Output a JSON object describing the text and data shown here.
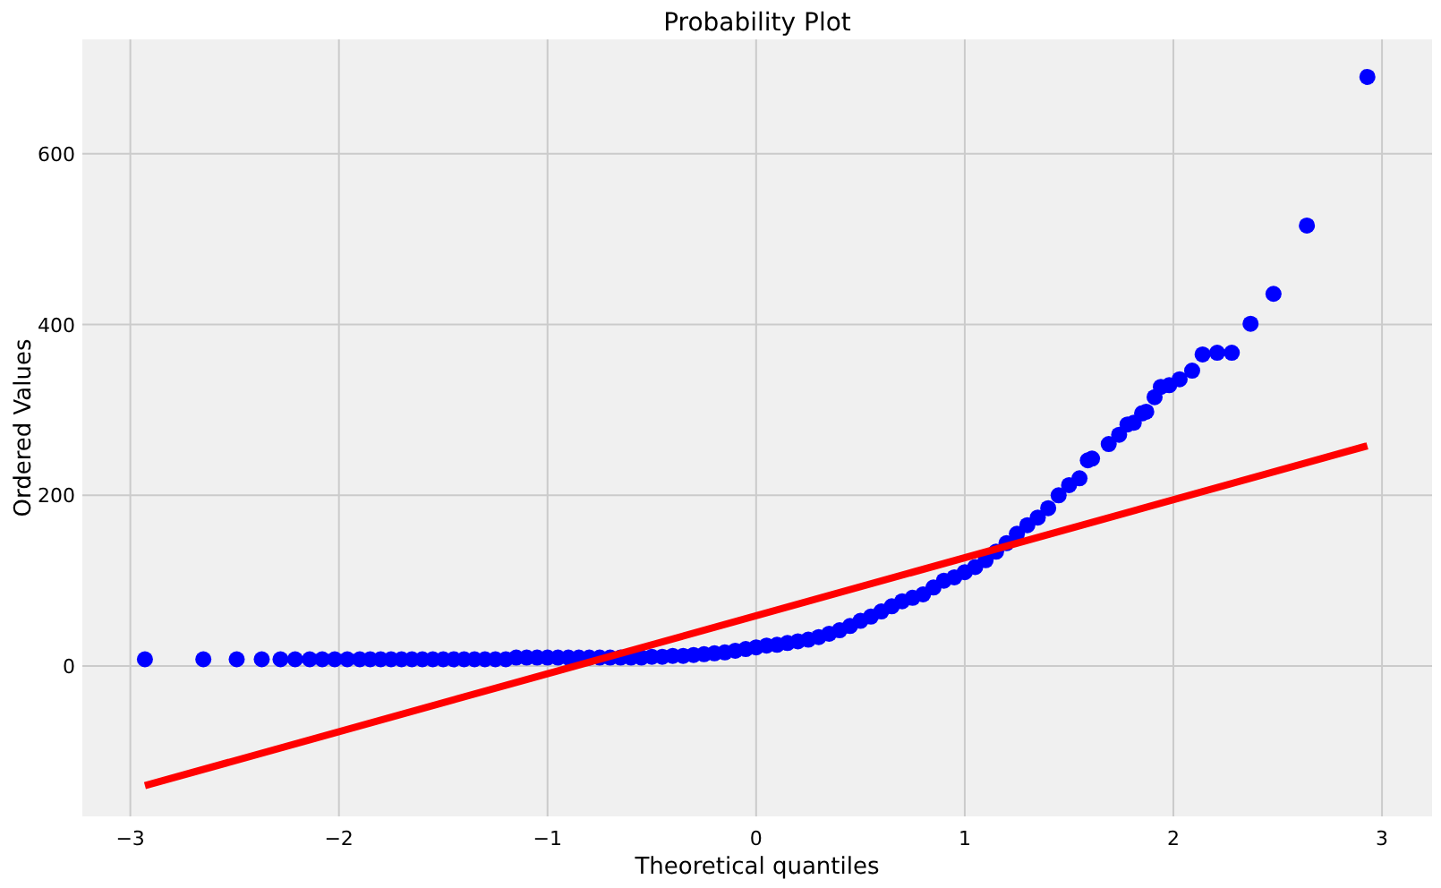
{
  "chart_data": {
    "type": "scatter",
    "title": "Probability Plot",
    "xlabel": "Theoretical quantiles",
    "ylabel": "Ordered Values",
    "xlim": [
      -3.23,
      3.24
    ],
    "ylim": [
      -176,
      734
    ],
    "xticks": [
      {
        "value": -3,
        "label": "−3"
      },
      {
        "value": -2,
        "label": "−2"
      },
      {
        "value": -1,
        "label": "−1"
      },
      0,
      1,
      2,
      3
    ],
    "yticks": [
      0,
      200,
      400,
      600
    ],
    "grid": true,
    "marker": "circle",
    "series": [
      {
        "color": "#0000ff",
        "x": [
          -2.93,
          -2.65,
          -2.49,
          -2.37,
          -2.28,
          -2.21,
          -2.14,
          -2.08,
          -2.02,
          -1.96,
          -1.9,
          -1.85,
          -1.8,
          -1.75,
          -1.7,
          -1.65,
          -1.6,
          -1.55,
          -1.5,
          -1.45,
          -1.4,
          -1.35,
          -1.3,
          -1.25,
          -1.2,
          -1.15,
          -1.1,
          -1.05,
          -1.0,
          -0.95,
          -0.9,
          -0.85,
          -0.8,
          -0.75,
          -0.7,
          -0.65,
          -0.6,
          -0.55,
          -0.5,
          -0.45,
          -0.4,
          -0.35,
          -0.3,
          -0.25,
          -0.2,
          -0.15,
          -0.1,
          -0.05,
          0,
          0.05,
          0.1,
          0.15,
          0.2,
          0.25,
          0.3,
          0.35,
          0.4,
          0.45,
          0.5,
          0.55,
          0.6,
          0.65,
          0.7,
          0.75,
          0.8,
          0.85,
          0.9,
          0.95,
          1.0,
          1.05,
          1.1,
          1.15,
          1.2,
          1.25,
          1.3,
          1.35,
          1.4,
          1.45,
          1.5,
          1.55,
          1.59,
          1.61,
          1.69,
          1.74,
          1.78,
          1.81,
          1.85,
          1.87,
          1.91,
          1.94,
          1.98,
          2.03,
          2.09,
          2.14,
          2.21,
          2.28,
          2.37,
          2.48,
          2.64,
          2.93
        ],
        "values": [
          8,
          8,
          8,
          8,
          8,
          8,
          8,
          8,
          8,
          8,
          8,
          8,
          8,
          8,
          8,
          8,
          8,
          8,
          8,
          8,
          8,
          8,
          8,
          8,
          8,
          10,
          10,
          10,
          10,
          10,
          10,
          10,
          10,
          10,
          10,
          10,
          10,
          10,
          11,
          11,
          12,
          12,
          13,
          14,
          15,
          16,
          18,
          20,
          22,
          24,
          25,
          27,
          29,
          31,
          34,
          38,
          42,
          47,
          53,
          58,
          64,
          70,
          76,
          80,
          84,
          92,
          100,
          104,
          110,
          116,
          124,
          134,
          144,
          155,
          165,
          174,
          185,
          200,
          212,
          220,
          241,
          243,
          260,
          271,
          283,
          285,
          296,
          298,
          315,
          327,
          329,
          336,
          346,
          365,
          367,
          367,
          401,
          436,
          516,
          690
        ]
      },
      {
        "type": "line",
        "color": "#ff0000",
        "line_style": "solid",
        "marker": "none",
        "x": [
          -2.93,
          2.93
        ],
        "values": [
          -140,
          258
        ]
      }
    ]
  }
}
